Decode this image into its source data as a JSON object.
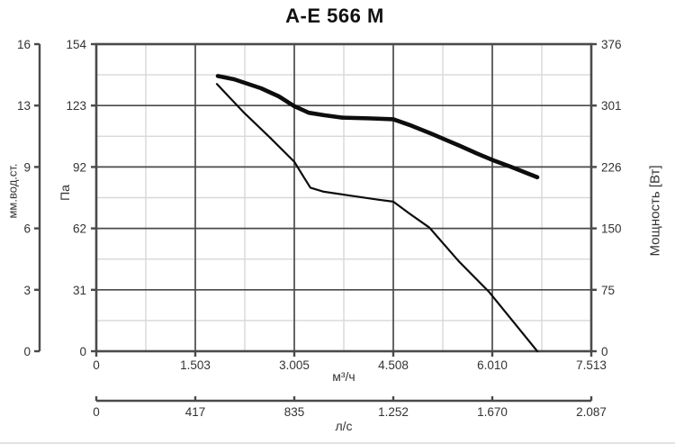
{
  "title": "A-E 566 M",
  "colors": {
    "axis": "#4a4a4a",
    "grid_major": "#4a4a4a",
    "grid_minor": "#d8d8d8",
    "curve": "#0d0d0d",
    "text": "#333333"
  },
  "chart_data": {
    "type": "line",
    "title": "A-E 566 M",
    "grid": {
      "major": true,
      "minor": true
    },
    "legend": false,
    "axes": {
      "left_outer": {
        "label": "мм.вод.ст.",
        "ticks": [
          "0",
          "3",
          "6",
          "9",
          "13",
          "16"
        ],
        "range": [
          0,
          16
        ]
      },
      "left_inner": {
        "label": "Па",
        "ticks": [
          "0",
          "31",
          "62",
          "92",
          "123",
          "154"
        ],
        "range": [
          0,
          154
        ]
      },
      "right": {
        "label": "Мощность [Вт]",
        "ticks": [
          "0",
          "75",
          "150",
          "226",
          "301",
          "376"
        ],
        "range": [
          0,
          376
        ]
      },
      "bottom_flow": {
        "label": "м³/ч",
        "ticks": [
          "0",
          "1.503",
          "3.005",
          "4.508",
          "6.010",
          "7.513"
        ],
        "range": [
          0,
          7513
        ]
      },
      "bottom_ls": {
        "label": "л/с",
        "ticks": [
          "0",
          "417",
          "835",
          "1.252",
          "1.670",
          "2.087"
        ],
        "range": [
          0,
          2087
        ]
      }
    },
    "series": [
      {
        "name": "Мощность [Вт]",
        "axis": "right",
        "style": "thick",
        "points": [
          [
            1844,
            337
          ],
          [
            2090,
            333
          ],
          [
            2500,
            322
          ],
          [
            2770,
            312
          ],
          [
            3005,
            300
          ],
          [
            3225,
            292
          ],
          [
            3455,
            289
          ],
          [
            3730,
            286
          ],
          [
            4180,
            285
          ],
          [
            4508,
            284
          ],
          [
            4755,
            277
          ],
          [
            5095,
            266
          ],
          [
            5505,
            252
          ],
          [
            5780,
            242
          ],
          [
            6050,
            233
          ],
          [
            6285,
            226
          ],
          [
            6693,
            213
          ]
        ]
      },
      {
        "name": "Па",
        "axis": "left_inner",
        "style": "thin",
        "points": [
          [
            1830,
            134
          ],
          [
            2230,
            120
          ],
          [
            2640,
            107
          ],
          [
            3005,
            95
          ],
          [
            3155,
            87
          ],
          [
            3250,
            82
          ],
          [
            3455,
            80
          ],
          [
            3865,
            78
          ],
          [
            4275,
            76
          ],
          [
            4508,
            75
          ],
          [
            4755,
            69
          ],
          [
            5055,
            62
          ],
          [
            5505,
            45
          ],
          [
            5955,
            30
          ],
          [
            6325,
            15
          ],
          [
            6693,
            0
          ]
        ]
      }
    ]
  }
}
